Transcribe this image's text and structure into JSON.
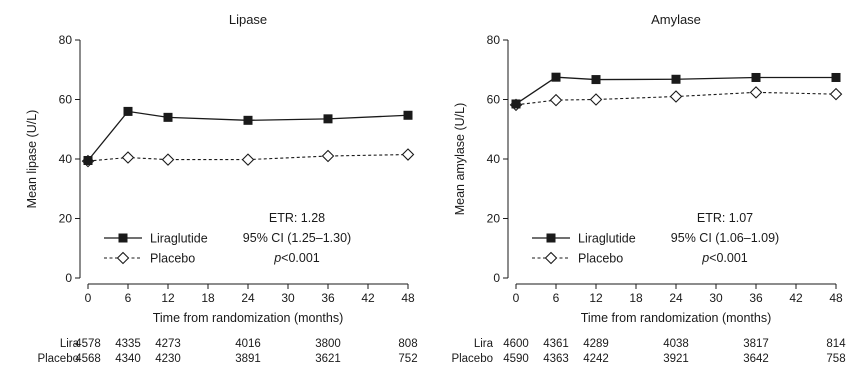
{
  "chart_data": [
    {
      "type": "line",
      "title": "Lipase",
      "xlabel": "Time from randomization (months)",
      "ylabel": "Mean lipase (U/L)",
      "xlim": [
        0,
        48
      ],
      "ylim": [
        0,
        80
      ],
      "xticks": [
        0,
        6,
        12,
        18,
        24,
        30,
        36,
        42,
        48
      ],
      "yticks": [
        0,
        20,
        40,
        60,
        80
      ],
      "grid": false,
      "legend_position": "bottom-left",
      "series": [
        {
          "name": "Liraglutide",
          "marker": "filled-square",
          "style": "solid",
          "x": [
            0,
            6,
            12,
            24,
            36,
            48
          ],
          "y": [
            39.5,
            56,
            54,
            53,
            53.5,
            54.7
          ]
        },
        {
          "name": "Placebo",
          "marker": "open-diamond",
          "style": "dashed",
          "x": [
            0,
            6,
            12,
            24,
            36,
            48
          ],
          "y": [
            39.3,
            40.5,
            39.8,
            39.8,
            41.0,
            41.5
          ]
        }
      ],
      "stats": {
        "line1": "ETR: 1.28",
        "line2": "95% CI (1.25–1.30)",
        "p_symbol": "p",
        "p_rest": "<0.001"
      },
      "at_risk": {
        "x": [
          0,
          6,
          12,
          24,
          36,
          48
        ],
        "rows": [
          {
            "label": "Lira",
            "values": [
              "4578",
              "4335",
              "4273",
              "4016",
              "3800",
              "808"
            ]
          },
          {
            "label": "Placebo",
            "values": [
              "4568",
              "4340",
              "4230",
              "3891",
              "3621",
              "752"
            ]
          }
        ]
      }
    },
    {
      "type": "line",
      "title": "Amylase",
      "xlabel": "Time from randomization (months)",
      "ylabel": "Mean amylase (U/L)",
      "xlim": [
        0,
        48
      ],
      "ylim": [
        0,
        80
      ],
      "xticks": [
        0,
        6,
        12,
        18,
        24,
        30,
        36,
        42,
        48
      ],
      "yticks": [
        0,
        20,
        40,
        60,
        80
      ],
      "grid": false,
      "legend_position": "bottom-left",
      "series": [
        {
          "name": "Liraglutide",
          "marker": "filled-square",
          "style": "solid",
          "x": [
            0,
            6,
            12,
            24,
            36,
            48
          ],
          "y": [
            58.5,
            67.5,
            66.7,
            66.8,
            67.4,
            67.4
          ]
        },
        {
          "name": "Placebo",
          "marker": "open-diamond",
          "style": "dashed",
          "x": [
            0,
            6,
            12,
            24,
            36,
            48
          ],
          "y": [
            58.2,
            59.8,
            60.0,
            61.0,
            62.4,
            61.8
          ]
        }
      ],
      "stats": {
        "line1": "ETR: 1.07",
        "line2": "95% CI (1.06–1.09)",
        "p_symbol": "p",
        "p_rest": "<0.001"
      },
      "at_risk": {
        "x": [
          0,
          6,
          12,
          24,
          36,
          48
        ],
        "rows": [
          {
            "label": "Lira",
            "values": [
              "4600",
              "4361",
              "4289",
              "4038",
              "3817",
              "814"
            ]
          },
          {
            "label": "Placebo",
            "values": [
              "4590",
              "4363",
              "4242",
              "3921",
              "3642",
              "758"
            ]
          }
        ]
      }
    }
  ]
}
